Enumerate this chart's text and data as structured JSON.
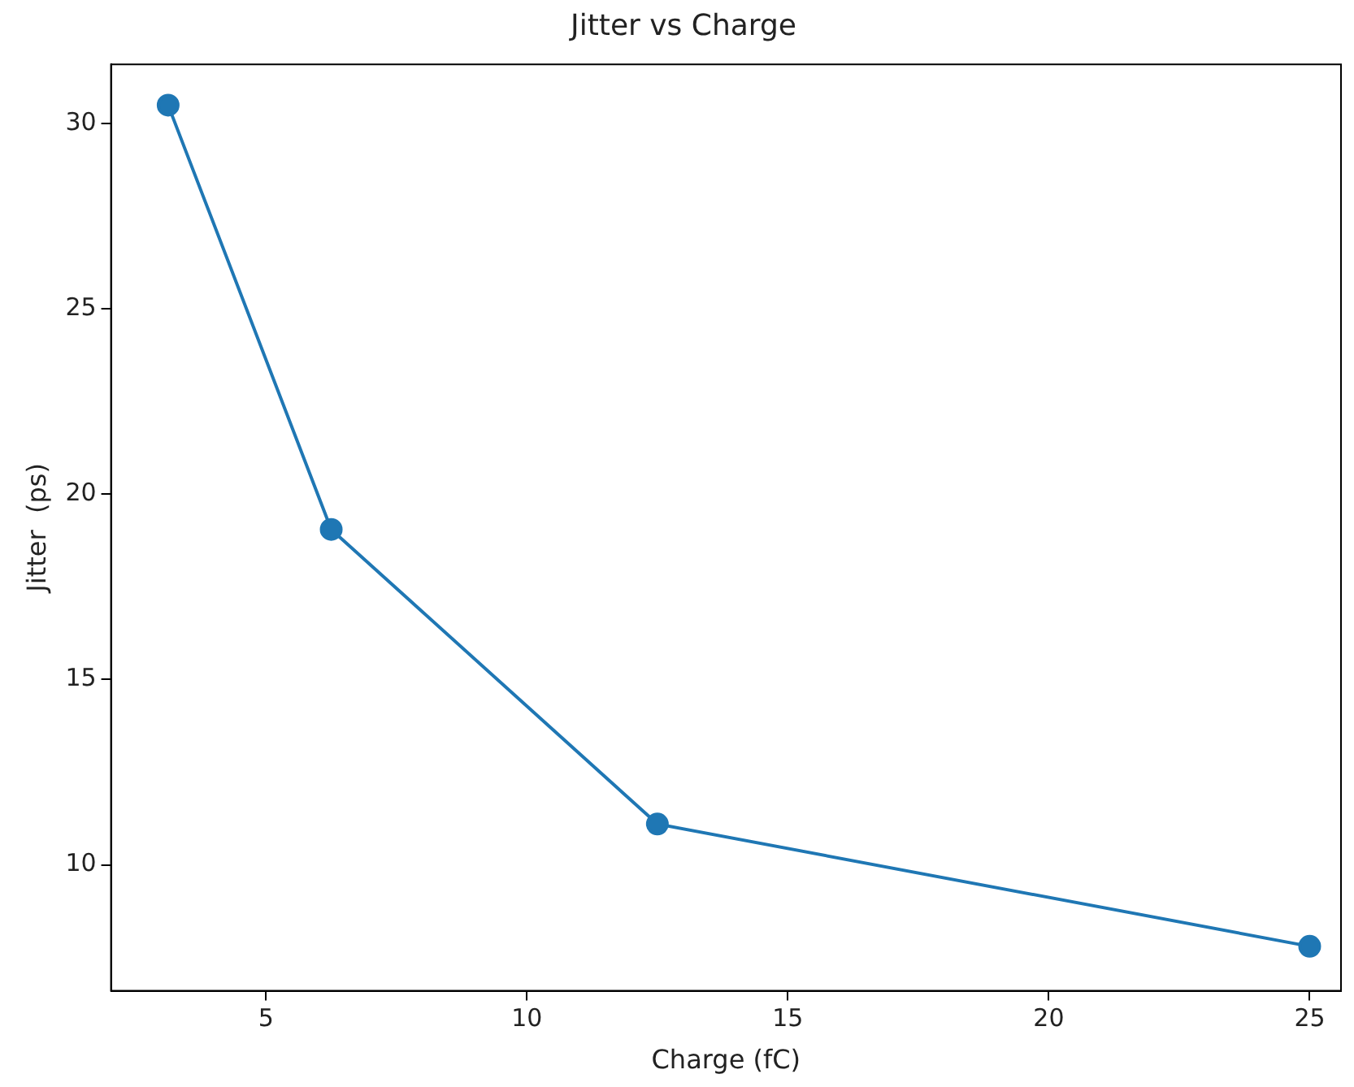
{
  "chart_data": {
    "type": "line",
    "title": "Jitter vs Charge",
    "xlabel": "Charge (fC)",
    "ylabel": "Jitter  (ps)",
    "x": [
      3.125,
      6.25,
      12.5,
      25
    ],
    "series": [
      {
        "color": "#1f77b4",
        "values": [
          30.5,
          19.05,
          11.1,
          7.8
        ]
      }
    ],
    "xlim": [
      2.03,
      25.6
    ],
    "xticks": [
      5,
      10,
      15,
      20,
      25
    ],
    "ylim": [
      6.6,
      31.6
    ],
    "yticks": [
      10,
      15,
      20,
      25,
      30
    ],
    "grid": false,
    "legend": false,
    "marker": "circle",
    "line_style": "solid"
  }
}
